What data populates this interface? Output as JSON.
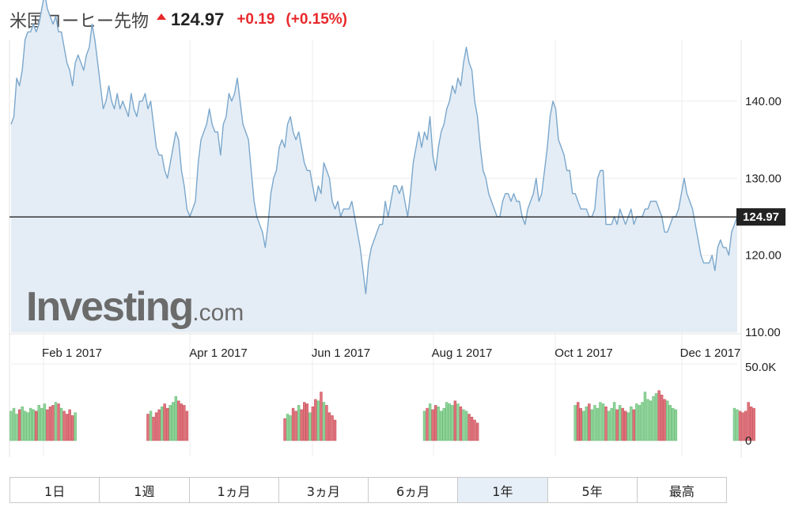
{
  "header": {
    "title": "米国コーヒー先物",
    "price": "124.97",
    "change": "+0.19",
    "change_pct": "(+0.15%)",
    "up_color": "#e8282b",
    "arrow_icon": "up-triangle-icon"
  },
  "watermark": {
    "main": "Investing",
    "tld": ".com"
  },
  "chart_data": {
    "type": "area",
    "x_tick_labels": [
      "Feb 1 2017",
      "Apr 1 2017",
      "Jun 1 2017",
      "Aug 1 2017",
      "Oct 1 2017",
      "Dec 1 2017"
    ],
    "y_tick_labels": [
      "140.00",
      "130.00",
      "120.00",
      "110.00"
    ],
    "y_ticks": [
      140,
      130,
      120,
      110
    ],
    "ylim": [
      110,
      148
    ],
    "current_value_label": "124.97",
    "current_value": 124.97,
    "line_color": "#7ba7cc",
    "fill_color": "#e4edf5",
    "grid": true,
    "series": [
      {
        "values": [
          137,
          138,
          143,
          142,
          144,
          148,
          149,
          149,
          150,
          149,
          150,
          152,
          154,
          152,
          151,
          150,
          151,
          149,
          149,
          147,
          145,
          144,
          142,
          145,
          146,
          145,
          144,
          146,
          147,
          150,
          148,
          145,
          142,
          139,
          140,
          142,
          140,
          139,
          141,
          139,
          140,
          139,
          138,
          141,
          139,
          138,
          140,
          140,
          141,
          139,
          140,
          137,
          134,
          133,
          133,
          131,
          130,
          132,
          134,
          136,
          135,
          131,
          129,
          126,
          125,
          126,
          127,
          132,
          135,
          136,
          137,
          139,
          137,
          136,
          136,
          133,
          137,
          138,
          141,
          140,
          141,
          143,
          140,
          137,
          136,
          135,
          131,
          127,
          125,
          124,
          123,
          121,
          124,
          128,
          130,
          131,
          134,
          135,
          134,
          137,
          138,
          136,
          135,
          136,
          134,
          132,
          131,
          131,
          129,
          127,
          129,
          128,
          132,
          131,
          130,
          127,
          126,
          127,
          125,
          126,
          126,
          126,
          127,
          125,
          123,
          121,
          118,
          115,
          119,
          121,
          122,
          123,
          124,
          124,
          127,
          125,
          127,
          129,
          129,
          128,
          129,
          127,
          125,
          128,
          132,
          134,
          136,
          134,
          136,
          135,
          138,
          133,
          131,
          134,
          136,
          137,
          139,
          140,
          142,
          141,
          143,
          142,
          145,
          147,
          145,
          144,
          140,
          138,
          134,
          131,
          130,
          128,
          127,
          126,
          125,
          125,
          127,
          128,
          128,
          127,
          128,
          127,
          127,
          125,
          124,
          126,
          127,
          128,
          130,
          127,
          128,
          131,
          134,
          138,
          140,
          139,
          135,
          134,
          133,
          131,
          131,
          128,
          128,
          127,
          126,
          126,
          126,
          125,
          125,
          126,
          130,
          131,
          131,
          124,
          124,
          124,
          125,
          124,
          126,
          125,
          124,
          125,
          126,
          124,
          125,
          125,
          125,
          126,
          126,
          127,
          127,
          127,
          126,
          125,
          123,
          123,
          124,
          125,
          125,
          126,
          128,
          130,
          128,
          127,
          126,
          124,
          122,
          120,
          119,
          119,
          119,
          120,
          118,
          121,
          122,
          121,
          121,
          120,
          123,
          124,
          125
        ],
        "volume_k": [
          20,
          22,
          18,
          21,
          23,
          20,
          19,
          22,
          21,
          20,
          24,
          22,
          25,
          21,
          23,
          24,
          26,
          25,
          22,
          20,
          18,
          21,
          17,
          19,
          null,
          null,
          null,
          null,
          null,
          null,
          null,
          null,
          null,
          null,
          null,
          null,
          null,
          null,
          null,
          null,
          null,
          null,
          null,
          null,
          null,
          null,
          null,
          null,
          null,
          18,
          20,
          16,
          19,
          21,
          23,
          25,
          22,
          24,
          26,
          30,
          27,
          25,
          24,
          20,
          null,
          null,
          null,
          null,
          null,
          null,
          null,
          null,
          null,
          null,
          null,
          null,
          null,
          null,
          null,
          null,
          null,
          null,
          null,
          null,
          null,
          null,
          null,
          null,
          null,
          null,
          null,
          null,
          null,
          null,
          null,
          null,
          null,
          null,
          15,
          18,
          17,
          22,
          20,
          24,
          21,
          26,
          25,
          19,
          23,
          28,
          27,
          33,
          26,
          24,
          19,
          17,
          14,
          null,
          null,
          null,
          null,
          null,
          null,
          null,
          null,
          null,
          null,
          null,
          null,
          null,
          null,
          null,
          null,
          null,
          null,
          null,
          null,
          null,
          null,
          null,
          null,
          null,
          null,
          null,
          null,
          null,
          null,
          null,
          20,
          22,
          25,
          21,
          24,
          23,
          20,
          22,
          26,
          25,
          24,
          27,
          25,
          23,
          21,
          20,
          18,
          16,
          14,
          12,
          null,
          null,
          null,
          null,
          null,
          null,
          null,
          null,
          null,
          null,
          null,
          null,
          null,
          null,
          null,
          null,
          null,
          null,
          null,
          null,
          null,
          null,
          null,
          null,
          null,
          null,
          null,
          null,
          null,
          null,
          null,
          null,
          null,
          null,
          24,
          26,
          22,
          20,
          23,
          25,
          21,
          24,
          22,
          26,
          25,
          23,
          20,
          22,
          26,
          21,
          24,
          22,
          20,
          19,
          23,
          21,
          25,
          24,
          26,
          33,
          28,
          27,
          30,
          32,
          34,
          31,
          28,
          27,
          24,
          22,
          21,
          null,
          null,
          null,
          null,
          null,
          null,
          null,
          null,
          null,
          null,
          null,
          null,
          null,
          null,
          null,
          null,
          null,
          null,
          null,
          null,
          22,
          21,
          20,
          19,
          20,
          26,
          23,
          22,
          null
        ]
      }
    ],
    "volume_axis_labels": [
      "50.0K",
      "0"
    ],
    "volume_max_k": 50,
    "volume_up_color": "#8fd49a",
    "volume_down_color": "#e0727b"
  },
  "tabs": [
    {
      "label": "1日",
      "active": false
    },
    {
      "label": "1週",
      "active": false
    },
    {
      "label": "1ヵ月",
      "active": false
    },
    {
      "label": "3ヵ月",
      "active": false
    },
    {
      "label": "6ヵ月",
      "active": false
    },
    {
      "label": "1年",
      "active": true
    },
    {
      "label": "5年",
      "active": false
    },
    {
      "label": "最高",
      "active": false
    }
  ]
}
